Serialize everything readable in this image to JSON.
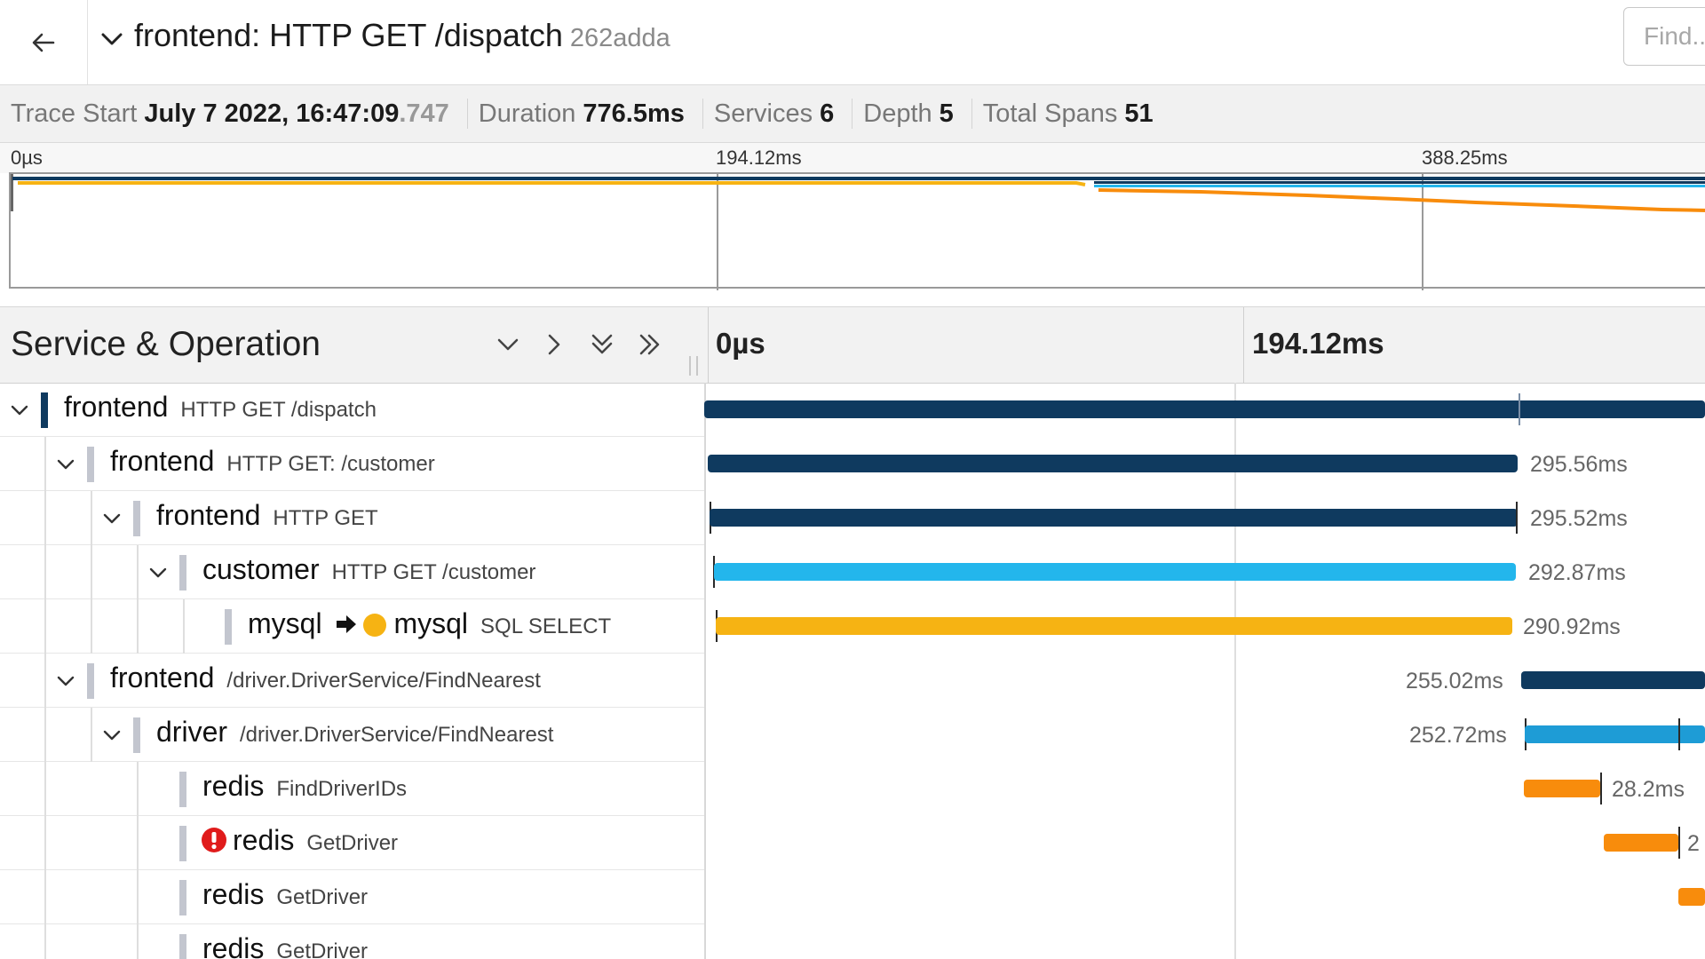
{
  "header": {
    "back_icon": "arrow-left-icon",
    "title": "frontend: HTTP GET /dispatch",
    "trace_id": "262adda",
    "find_placeholder": "Find..."
  },
  "summary": {
    "trace_start_label": "Trace Start",
    "trace_start_date": "July 7 2022, 16:47:09",
    "trace_start_ms": ".747",
    "duration_label": "Duration",
    "duration": "776.5ms",
    "services_label": "Services",
    "services": "6",
    "depth_label": "Depth",
    "depth": "5",
    "total_spans_label": "Total Spans",
    "total_spans": "51"
  },
  "minimap": {
    "ticks": [
      "0µs",
      "194.12ms",
      "388.25ms"
    ]
  },
  "timeline": {
    "column_title": "Service & Operation",
    "ticks": [
      "0µs",
      "194.12ms"
    ]
  },
  "colors": {
    "frontend": "#0f3a5f",
    "customer": "#23b6ec",
    "mysql": "#f6b313",
    "driver": "#1e9cd6",
    "redis": "#f88c0c",
    "error": "#e01b1b"
  },
  "spans": [
    {
      "service": "frontend",
      "operation": "HTTP GET /dispatch",
      "duration": "",
      "error": false
    },
    {
      "service": "frontend",
      "operation": "HTTP GET: /customer",
      "duration": "295.56ms",
      "error": false
    },
    {
      "service": "frontend",
      "operation": "HTTP GET",
      "duration": "295.52ms",
      "error": false
    },
    {
      "service": "customer",
      "operation": "HTTP GET /customer",
      "duration": "292.87ms",
      "error": false
    },
    {
      "service": "mysql",
      "service_target": "mysql",
      "operation": "SQL SELECT",
      "duration": "290.92ms",
      "error": false
    },
    {
      "service": "frontend",
      "operation": "/driver.DriverService/FindNearest",
      "duration": "255.02ms",
      "error": false
    },
    {
      "service": "driver",
      "operation": "/driver.DriverService/FindNearest",
      "duration": "252.72ms",
      "error": false
    },
    {
      "service": "redis",
      "operation": "FindDriverIDs",
      "duration": "28.2ms",
      "error": false
    },
    {
      "service": "redis",
      "operation": "GetDriver",
      "duration": "2",
      "error": true
    },
    {
      "service": "redis",
      "operation": "GetDriver",
      "duration": "",
      "error": false
    },
    {
      "service": "redis",
      "operation": "GetDriver",
      "duration": "",
      "error": false
    }
  ]
}
